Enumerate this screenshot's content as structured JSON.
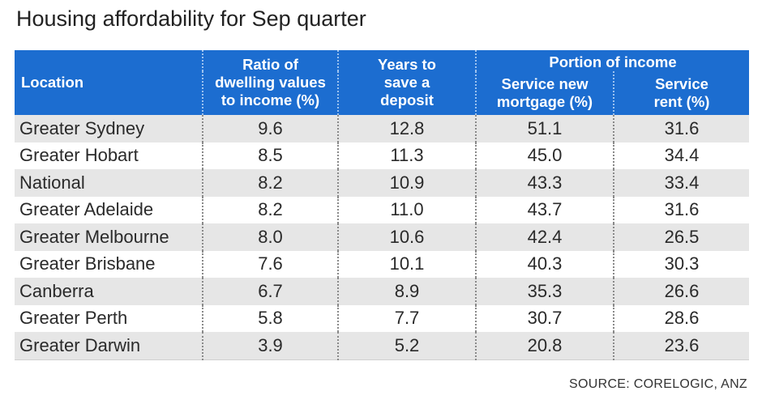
{
  "title": "Housing affordability for Sep quarter",
  "source": "SOURCE: CORELOGIC, ANZ",
  "chart_data": {
    "type": "table",
    "title": "Housing affordability for Sep quarter",
    "headers": {
      "location": "Location",
      "ratio": "Ratio of dwelling values to income (%)",
      "years": "Years to save a deposit",
      "group": "Portion of income",
      "mortgage": "Service new mortgage (%)",
      "rent": "Service rent (%)"
    },
    "header_lines": {
      "ratio": [
        "Ratio of",
        "dwelling values",
        "to income (%)"
      ],
      "years": [
        "Years to",
        "save a",
        "deposit"
      ],
      "mortgage": [
        "Service new",
        "mortgage (%)"
      ],
      "rent": [
        "Service",
        "rent (%)"
      ]
    },
    "rows": [
      {
        "location": "Greater Sydney",
        "ratio": "9.6",
        "years": "12.8",
        "mortgage": "51.1",
        "rent": "31.6"
      },
      {
        "location": "Greater Hobart",
        "ratio": "8.5",
        "years": "11.3",
        "mortgage": "45.0",
        "rent": "34.4"
      },
      {
        "location": "National",
        "ratio": "8.2",
        "years": "10.9",
        "mortgage": "43.3",
        "rent": "33.4"
      },
      {
        "location": "Greater Adelaide",
        "ratio": "8.2",
        "years": "11.0",
        "mortgage": "43.7",
        "rent": "31.6"
      },
      {
        "location": "Greater Melbourne",
        "ratio": "8.0",
        "years": "10.6",
        "mortgage": "42.4",
        "rent": "26.5"
      },
      {
        "location": "Greater Brisbane",
        "ratio": "7.6",
        "years": "10.1",
        "mortgage": "40.3",
        "rent": "30.3"
      },
      {
        "location": "Canberra",
        "ratio": "6.7",
        "years": "8.9",
        "mortgage": "35.3",
        "rent": "26.6"
      },
      {
        "location": "Greater Perth",
        "ratio": "5.8",
        "years": "7.7",
        "mortgage": "30.7",
        "rent": "28.6"
      },
      {
        "location": "Greater Darwin",
        "ratio": "3.9",
        "years": "5.2",
        "mortgage": "20.8",
        "rent": "23.6"
      }
    ]
  },
  "colors": {
    "header_bg": "#1c6dd0",
    "header_text": "#ffffff",
    "stripe": "#e6e6e6"
  }
}
